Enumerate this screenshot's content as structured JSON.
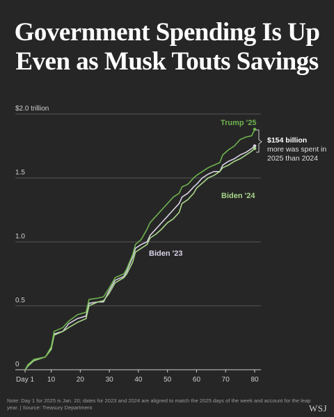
{
  "header": {
    "title_line1": "Government Spending Is Up",
    "title_line2": "Even as Musk Touts Savings"
  },
  "footer": {
    "note": "Note: Day 1 for 2025 is Jan. 20; dates for 2023 and 2024 are aligned to match the 2025 days of the week and account for the leap year. | Source: Treasury Department",
    "logo": "WSJ"
  },
  "annotation": {
    "bold": "$154 billion",
    "line2": "more was spent in",
    "line3": "2025 than 2024"
  },
  "colors": {
    "background": "#262626",
    "trump25": "#6fb34f",
    "biden24": "#a9d68a",
    "biden23": "#d9d2e6",
    "grid": "#666666"
  },
  "chart_data": {
    "type": "line",
    "x_ticks": [
      1,
      10,
      20,
      30,
      40,
      50,
      60,
      70,
      80
    ],
    "x_tick_labels": [
      "Day 1",
      "10",
      "20",
      "30",
      "40",
      "50",
      "60",
      "70",
      "80"
    ],
    "y_ticks": [
      0,
      0.5,
      1.0,
      1.5,
      2.0
    ],
    "y_tick_labels": [
      "0",
      "0.5",
      "1.0",
      "1.5",
      "$2.0 trillion"
    ],
    "xlim": [
      1,
      82
    ],
    "ylim": [
      0,
      2.0
    ],
    "grid": true,
    "series": [
      {
        "name": "Biden '23",
        "color_key": "biden23",
        "points": [
          [
            1,
            0
          ],
          [
            2,
            0.03
          ],
          [
            4,
            0.08
          ],
          [
            8,
            0.1
          ],
          [
            10,
            0.17
          ],
          [
            11,
            0.28
          ],
          [
            14,
            0.3
          ],
          [
            16,
            0.36
          ],
          [
            19,
            0.4
          ],
          [
            22,
            0.42
          ],
          [
            23,
            0.52
          ],
          [
            26,
            0.53
          ],
          [
            28,
            0.53
          ],
          [
            30,
            0.62
          ],
          [
            32,
            0.7
          ],
          [
            35,
            0.73
          ],
          [
            36,
            0.77
          ],
          [
            38,
            0.88
          ],
          [
            39,
            0.95
          ],
          [
            41,
            0.98
          ],
          [
            43,
            1.0
          ],
          [
            44,
            1.05
          ],
          [
            46,
            1.1
          ],
          [
            48,
            1.15
          ],
          [
            50,
            1.2
          ],
          [
            52,
            1.25
          ],
          [
            54,
            1.3
          ],
          [
            55,
            1.35
          ],
          [
            57,
            1.38
          ],
          [
            59,
            1.43
          ],
          [
            60,
            1.45
          ],
          [
            62,
            1.5
          ],
          [
            64,
            1.53
          ],
          [
            66,
            1.55
          ],
          [
            68,
            1.55
          ],
          [
            69,
            1.6
          ],
          [
            71,
            1.63
          ],
          [
            73,
            1.65
          ],
          [
            75,
            1.68
          ],
          [
            77,
            1.7
          ],
          [
            79,
            1.73
          ],
          [
            80,
            1.75
          ]
        ]
      },
      {
        "name": "Biden '24",
        "color_key": "biden24",
        "points": [
          [
            1,
            0
          ],
          [
            2,
            0.03
          ],
          [
            4,
            0.07
          ],
          [
            8,
            0.1
          ],
          [
            10,
            0.16
          ],
          [
            11,
            0.27
          ],
          [
            14,
            0.3
          ],
          [
            16,
            0.33
          ],
          [
            19,
            0.37
          ],
          [
            22,
            0.4
          ],
          [
            23,
            0.5
          ],
          [
            26,
            0.53
          ],
          [
            28,
            0.54
          ],
          [
            30,
            0.6
          ],
          [
            32,
            0.68
          ],
          [
            35,
            0.72
          ],
          [
            36,
            0.75
          ],
          [
            38,
            0.84
          ],
          [
            39,
            0.92
          ],
          [
            41,
            0.95
          ],
          [
            43,
            0.98
          ],
          [
            44,
            1.03
          ],
          [
            46,
            1.06
          ],
          [
            48,
            1.1
          ],
          [
            50,
            1.15
          ],
          [
            52,
            1.18
          ],
          [
            54,
            1.23
          ],
          [
            55,
            1.3
          ],
          [
            57,
            1.33
          ],
          [
            59,
            1.38
          ],
          [
            60,
            1.42
          ],
          [
            62,
            1.46
          ],
          [
            64,
            1.5
          ],
          [
            66,
            1.52
          ],
          [
            68,
            1.55
          ],
          [
            69,
            1.58
          ],
          [
            71,
            1.6
          ],
          [
            73,
            1.63
          ],
          [
            75,
            1.65
          ],
          [
            77,
            1.68
          ],
          [
            79,
            1.71
          ],
          [
            80,
            1.73
          ]
        ]
      },
      {
        "name": "Trump '25",
        "color_key": "trump25",
        "points": [
          [
            1,
            0
          ],
          [
            2,
            0.04
          ],
          [
            4,
            0.08
          ],
          [
            8,
            0.1
          ],
          [
            10,
            0.18
          ],
          [
            11,
            0.3
          ],
          [
            14,
            0.33
          ],
          [
            16,
            0.38
          ],
          [
            19,
            0.43
          ],
          [
            22,
            0.45
          ],
          [
            23,
            0.55
          ],
          [
            26,
            0.56
          ],
          [
            28,
            0.57
          ],
          [
            30,
            0.64
          ],
          [
            32,
            0.72
          ],
          [
            35,
            0.75
          ],
          [
            36,
            0.79
          ],
          [
            38,
            0.9
          ],
          [
            39,
            0.98
          ],
          [
            41,
            1.02
          ],
          [
            43,
            1.1
          ],
          [
            44,
            1.15
          ],
          [
            46,
            1.2
          ],
          [
            48,
            1.25
          ],
          [
            50,
            1.3
          ],
          [
            52,
            1.35
          ],
          [
            54,
            1.38
          ],
          [
            55,
            1.43
          ],
          [
            57,
            1.45
          ],
          [
            59,
            1.5
          ],
          [
            60,
            1.52
          ],
          [
            62,
            1.55
          ],
          [
            64,
            1.58
          ],
          [
            66,
            1.6
          ],
          [
            68,
            1.62
          ],
          [
            69,
            1.68
          ],
          [
            71,
            1.72
          ],
          [
            73,
            1.75
          ],
          [
            75,
            1.8
          ],
          [
            77,
            1.82
          ],
          [
            79,
            1.83
          ],
          [
            80,
            1.88
          ]
        ]
      }
    ],
    "series_labels": [
      "Trump '25",
      "Biden '24",
      "Biden '23"
    ]
  }
}
